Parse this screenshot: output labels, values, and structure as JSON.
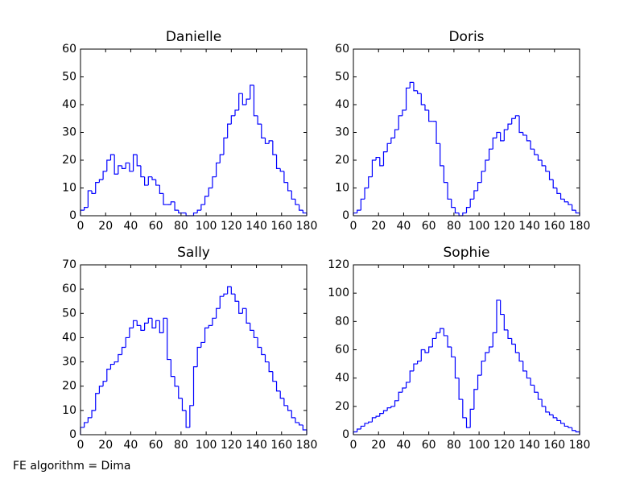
{
  "chart_data": [
    {
      "type": "histogram",
      "title": "Danielle",
      "color": "#0000ff",
      "bins": [
        0,
        3,
        6,
        9,
        12,
        15,
        18,
        21,
        24,
        27,
        30,
        33,
        36,
        39,
        42,
        45,
        48,
        51,
        54,
        57,
        60,
        63,
        66,
        69,
        72,
        75,
        78,
        81,
        84,
        87,
        90,
        93,
        96,
        99,
        102,
        105,
        108,
        111,
        114,
        117,
        120,
        123,
        126,
        129,
        132,
        135,
        138,
        141,
        144,
        147,
        150,
        153,
        156,
        159,
        162,
        165,
        168,
        171,
        174,
        177,
        180
      ],
      "counts": [
        2,
        3,
        9,
        8,
        12,
        13,
        16,
        20,
        22,
        15,
        18,
        17,
        19,
        16,
        22,
        18,
        14,
        11,
        14,
        13,
        11,
        8,
        4,
        4,
        5,
        2,
        1,
        1,
        0,
        0,
        1,
        2,
        4,
        7,
        10,
        14,
        19,
        22,
        28,
        33,
        36,
        38,
        44,
        40,
        42,
        47,
        36,
        33,
        28,
        26,
        27,
        22,
        17,
        16,
        12,
        9,
        6,
        4,
        2,
        1
      ],
      "xlim": [
        0,
        180
      ],
      "xticks": [
        0,
        20,
        40,
        60,
        80,
        100,
        120,
        140,
        160,
        180
      ],
      "ylim": [
        0,
        60
      ],
      "yticks": [
        0,
        10,
        20,
        30,
        40,
        50,
        60
      ]
    },
    {
      "type": "histogram",
      "title": "Doris",
      "color": "#0000ff",
      "bins": [
        0,
        3,
        6,
        9,
        12,
        15,
        18,
        21,
        24,
        27,
        30,
        33,
        36,
        39,
        42,
        45,
        48,
        51,
        54,
        57,
        60,
        63,
        66,
        69,
        72,
        75,
        78,
        81,
        84,
        87,
        90,
        93,
        96,
        99,
        102,
        105,
        108,
        111,
        114,
        117,
        120,
        123,
        126,
        129,
        132,
        135,
        138,
        141,
        144,
        147,
        150,
        153,
        156,
        159,
        162,
        165,
        168,
        171,
        174,
        177,
        180
      ],
      "counts": [
        1,
        2,
        6,
        10,
        14,
        20,
        21,
        18,
        23,
        26,
        28,
        31,
        36,
        38,
        46,
        48,
        45,
        44,
        40,
        38,
        34,
        34,
        26,
        18,
        12,
        6,
        3,
        1,
        0,
        1,
        3,
        6,
        9,
        12,
        16,
        20,
        24,
        28,
        30,
        27,
        31,
        33,
        35,
        36,
        30,
        29,
        27,
        24,
        22,
        20,
        18,
        16,
        13,
        10,
        8,
        6,
        5,
        4,
        2,
        1
      ],
      "xlim": [
        0,
        180
      ],
      "xticks": [
        0,
        20,
        40,
        60,
        80,
        100,
        120,
        140,
        160,
        180
      ],
      "ylim": [
        0,
        60
      ],
      "yticks": [
        0,
        10,
        20,
        30,
        40,
        50,
        60
      ]
    },
    {
      "type": "histogram",
      "title": "Sally",
      "color": "#0000ff",
      "bins": [
        0,
        3,
        6,
        9,
        12,
        15,
        18,
        21,
        24,
        27,
        30,
        33,
        36,
        39,
        42,
        45,
        48,
        51,
        54,
        57,
        60,
        63,
        66,
        69,
        72,
        75,
        78,
        81,
        84,
        87,
        90,
        93,
        96,
        99,
        102,
        105,
        108,
        111,
        114,
        117,
        120,
        123,
        126,
        129,
        132,
        135,
        138,
        141,
        144,
        147,
        150,
        153,
        156,
        159,
        162,
        165,
        168,
        171,
        174,
        177,
        180
      ],
      "counts": [
        3,
        5,
        7,
        10,
        17,
        20,
        22,
        27,
        29,
        30,
        33,
        36,
        40,
        44,
        47,
        45,
        43,
        46,
        48,
        44,
        47,
        42,
        48,
        31,
        24,
        20,
        15,
        10,
        3,
        12,
        28,
        36,
        38,
        44,
        45,
        48,
        52,
        57,
        58,
        61,
        58,
        55,
        50,
        52,
        46,
        43,
        40,
        36,
        33,
        30,
        26,
        22,
        18,
        15,
        12,
        10,
        7,
        5,
        4,
        2
      ],
      "xlim": [
        0,
        180
      ],
      "xticks": [
        0,
        20,
        40,
        60,
        80,
        100,
        120,
        140,
        160,
        180
      ],
      "ylim": [
        0,
        70
      ],
      "yticks": [
        0,
        10,
        20,
        30,
        40,
        50,
        60,
        70
      ]
    },
    {
      "type": "histogram",
      "title": "Sophie",
      "color": "#0000ff",
      "bins": [
        0,
        3,
        6,
        9,
        12,
        15,
        18,
        21,
        24,
        27,
        30,
        33,
        36,
        39,
        42,
        45,
        48,
        51,
        54,
        57,
        60,
        63,
        66,
        69,
        72,
        75,
        78,
        81,
        84,
        87,
        90,
        93,
        96,
        99,
        102,
        105,
        108,
        111,
        114,
        117,
        120,
        123,
        126,
        129,
        132,
        135,
        138,
        141,
        144,
        147,
        150,
        153,
        156,
        159,
        162,
        165,
        168,
        171,
        174,
        177,
        180
      ],
      "counts": [
        2,
        4,
        6,
        8,
        9,
        12,
        13,
        15,
        17,
        19,
        20,
        24,
        30,
        33,
        37,
        45,
        50,
        52,
        60,
        58,
        62,
        68,
        72,
        75,
        70,
        62,
        55,
        40,
        25,
        12,
        5,
        18,
        32,
        42,
        52,
        58,
        62,
        72,
        95,
        85,
        74,
        68,
        64,
        58,
        52,
        45,
        40,
        35,
        30,
        25,
        20,
        16,
        14,
        12,
        10,
        8,
        6,
        5,
        3,
        2
      ],
      "xlim": [
        0,
        180
      ],
      "xticks": [
        0,
        20,
        40,
        60,
        80,
        100,
        120,
        140,
        160,
        180
      ],
      "ylim": [
        0,
        120
      ],
      "yticks": [
        0,
        20,
        40,
        60,
        80,
        100,
        120
      ]
    }
  ],
  "figure_text": "FE algorithm = Dima"
}
